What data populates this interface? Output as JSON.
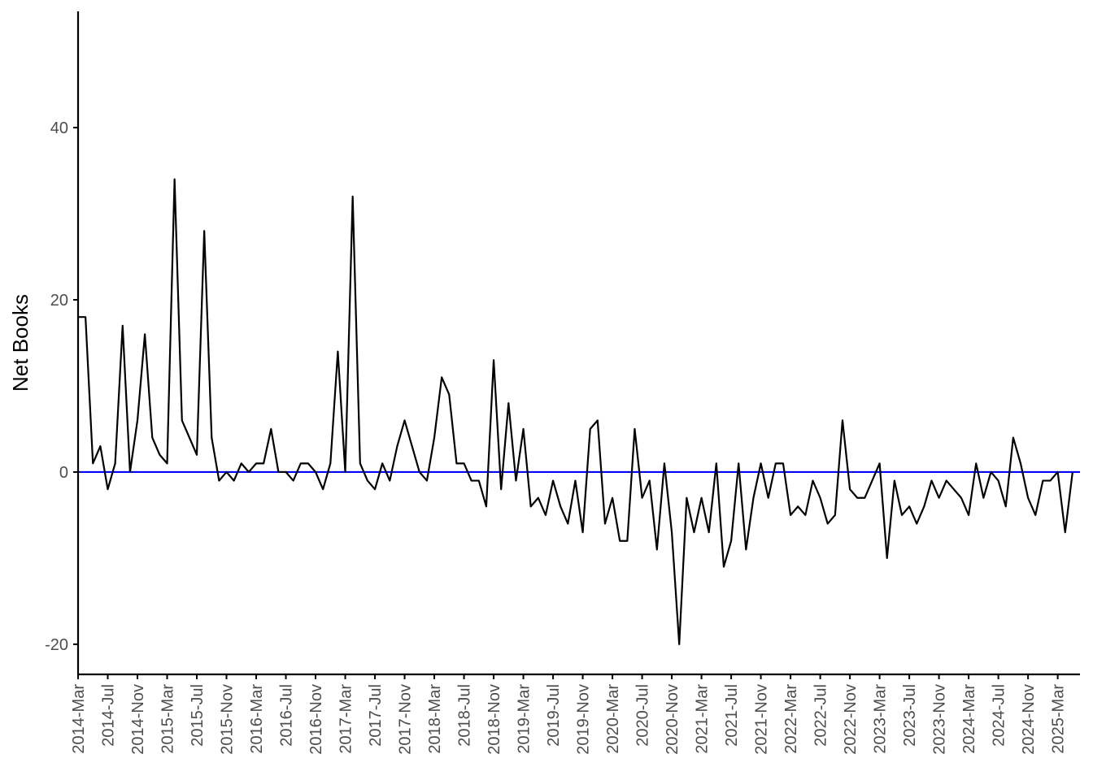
{
  "chart_data": {
    "type": "line",
    "title": "",
    "xlabel": "",
    "ylabel": "Net Books",
    "ylim": [
      -23.5,
      53.5
    ],
    "xlim": [
      "2014-03",
      "2025-06"
    ],
    "grid": false,
    "legend": "none",
    "colors": {
      "series": "#000000",
      "reference_line": "#0000ff",
      "axis": "#000000",
      "tick_label": "#4d4d4d"
    },
    "y_ticks": [
      -20,
      0,
      20,
      40
    ],
    "x_ticks": [
      "2014-Mar",
      "2014-Jul",
      "2014-Nov",
      "2015-Mar",
      "2015-Jul",
      "2015-Nov",
      "2016-Mar",
      "2016-Jul",
      "2016-Nov",
      "2017-Mar",
      "2017-Jul",
      "2017-Nov",
      "2018-Mar",
      "2018-Jul",
      "2018-Nov",
      "2019-Mar",
      "2019-Jul",
      "2019-Nov",
      "2020-Mar",
      "2020-Jul",
      "2020-Nov",
      "2021-Mar",
      "2021-Jul",
      "2021-Nov",
      "2022-Mar",
      "2022-Jul",
      "2022-Nov",
      "2023-Mar",
      "2023-Jul",
      "2023-Nov",
      "2024-Mar",
      "2024-Jul",
      "2024-Nov",
      "2025-Mar"
    ],
    "reference_line": {
      "y": 0
    },
    "series": [
      {
        "start": "2014-03",
        "values": [
          18,
          18,
          1,
          3,
          -2,
          1,
          17,
          0,
          6,
          16,
          4,
          2,
          1,
          34,
          6,
          4,
          2,
          28,
          4,
          -1,
          0,
          -1,
          1,
          0,
          1,
          1,
          5,
          0,
          0,
          -1,
          1,
          1,
          0,
          -2,
          1,
          14,
          0,
          32,
          1,
          -1,
          -2,
          1,
          -1,
          3,
          6,
          3,
          0,
          -1,
          4,
          11,
          9,
          1,
          1,
          -1,
          -1,
          -4,
          13,
          -2,
          8,
          -1,
          5,
          -4,
          -3,
          -5,
          -1,
          -4,
          -6,
          -1,
          -7,
          5,
          6,
          -6,
          -3,
          -8,
          -8,
          5,
          -3,
          -1,
          -9,
          1,
          -7,
          -20,
          -3,
          -7,
          -3,
          -7,
          1,
          -11,
          -8,
          1,
          -9,
          -3,
          1,
          -3,
          1,
          1,
          -5,
          -4,
          -5,
          -1,
          -3,
          -6,
          -5,
          6,
          -2,
          -3,
          -3,
          -1,
          1,
          -10,
          -1,
          -5,
          -4,
          -6,
          -4,
          -1,
          -3,
          -1,
          -2,
          -3,
          -5,
          1,
          -3,
          0,
          -1,
          -4,
          4,
          1,
          -3,
          -5,
          -1,
          -1,
          0,
          -7,
          0
        ]
      }
    ]
  }
}
